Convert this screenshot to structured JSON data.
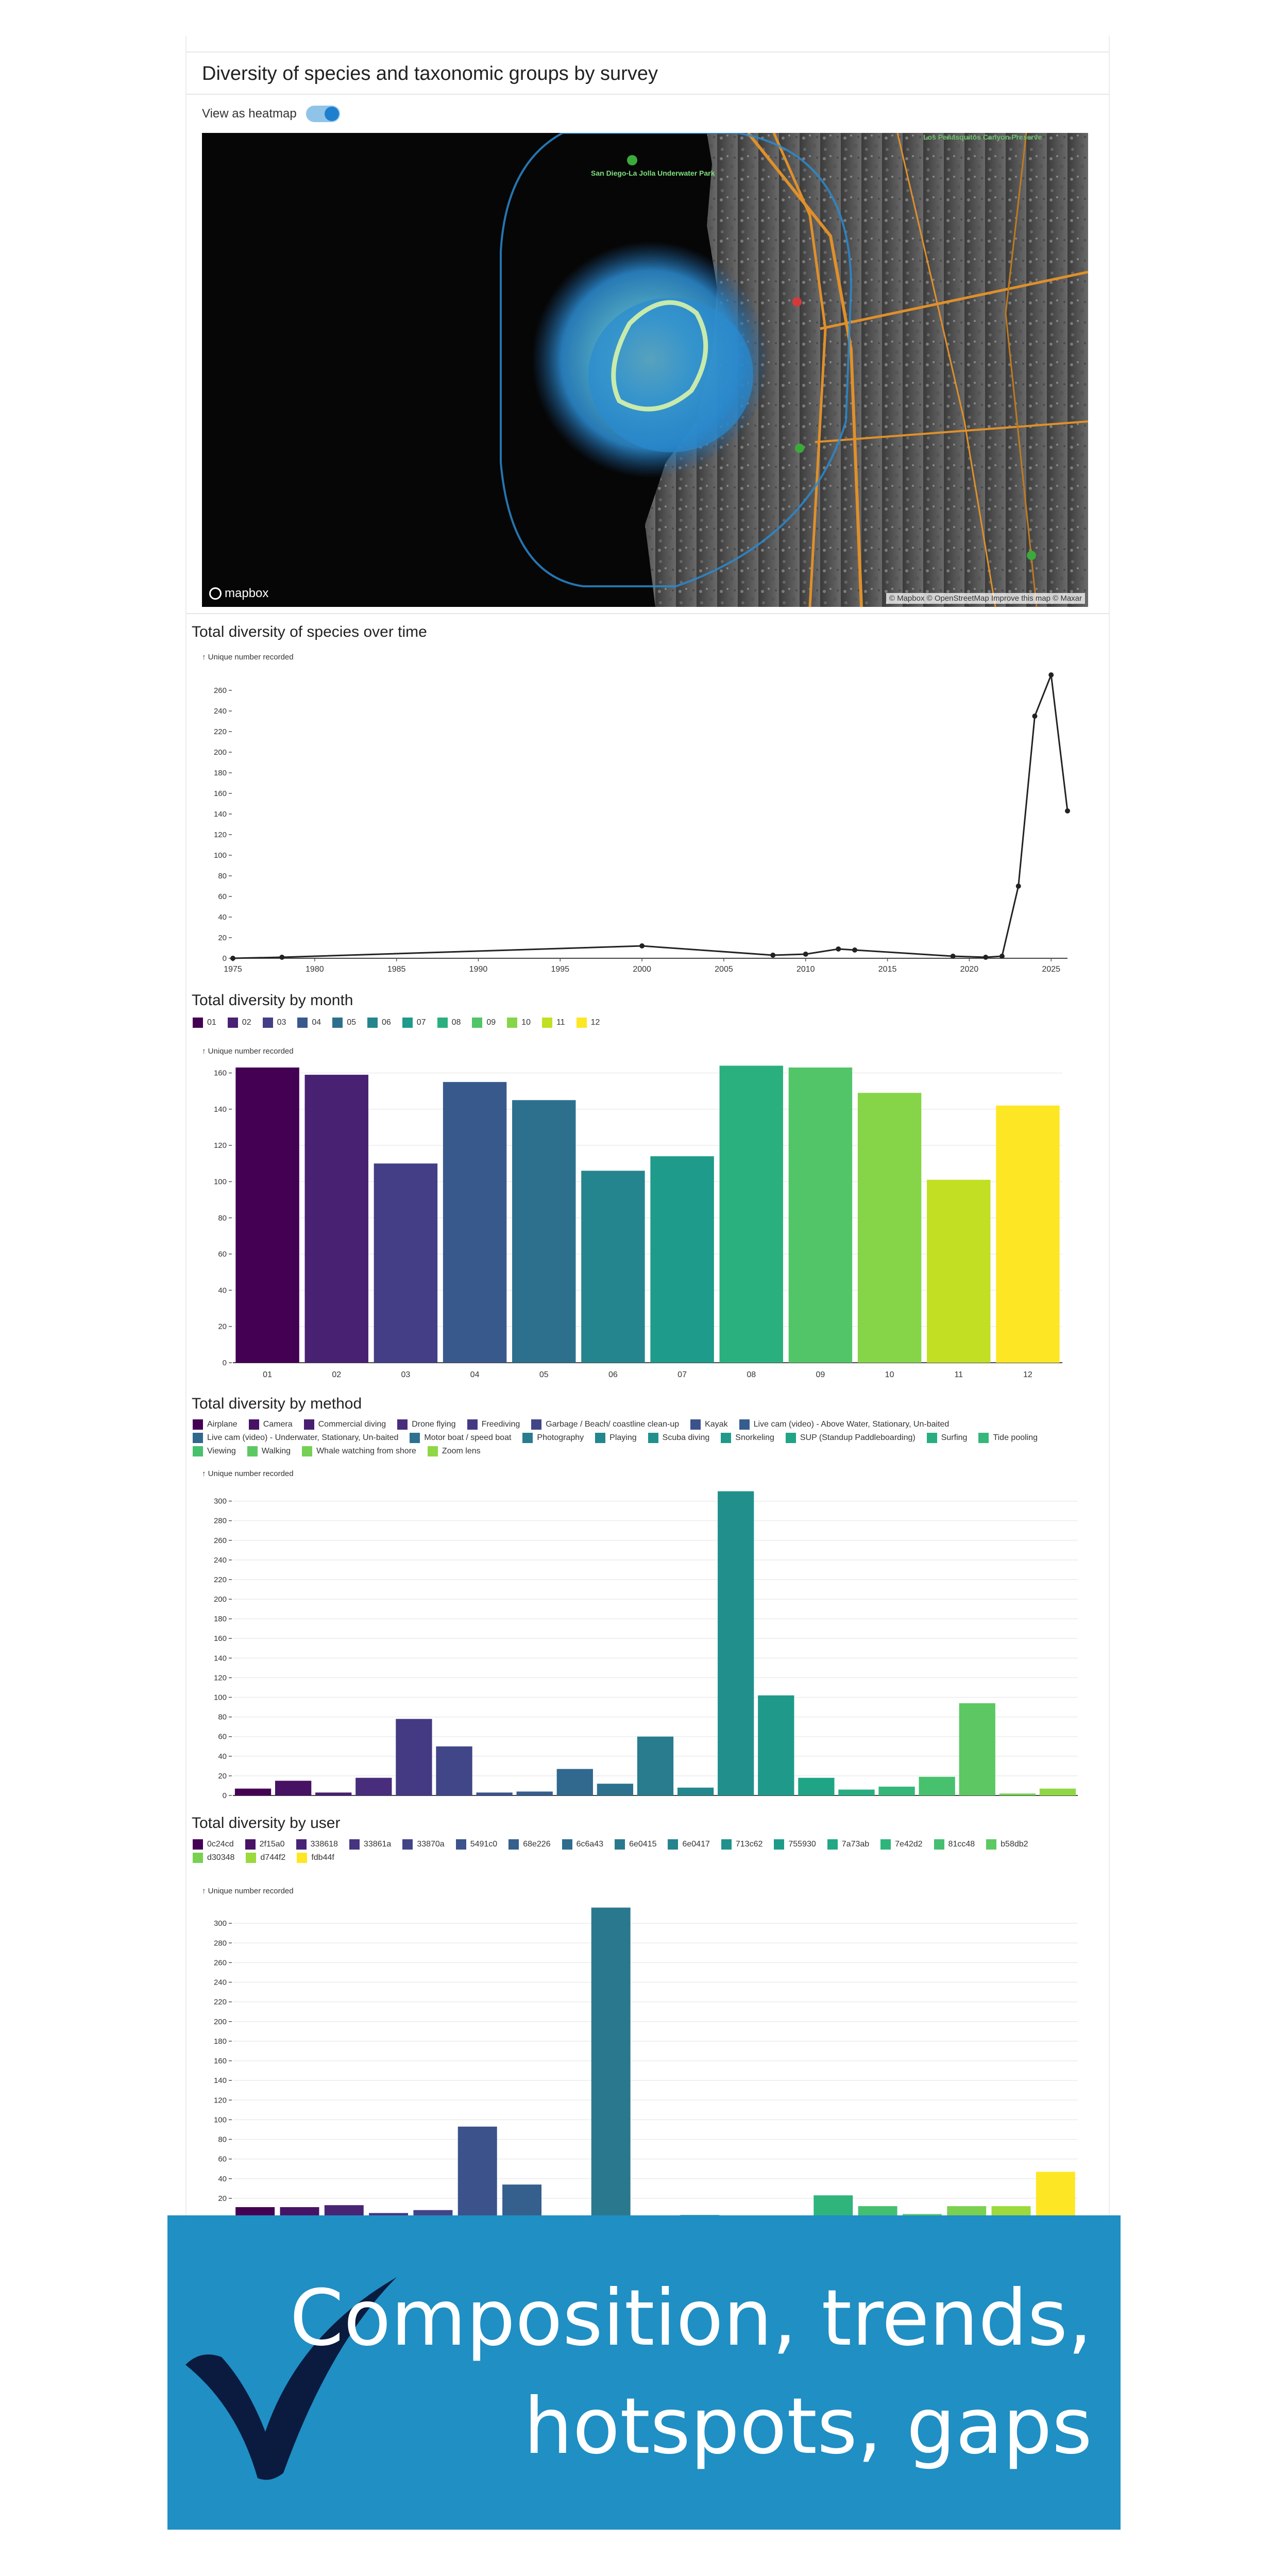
{
  "panel": {
    "title": "Diversity of species and taxonomic groups by survey",
    "toggle_label": "View as heatmap",
    "toggle_on": true
  },
  "map": {
    "logo": "mapbox",
    "attribution": "© Mapbox © OpenStreetMap Improve this map © Maxar",
    "place_labels": [
      "San Diego-La Jolla Underwater Park",
      "Los Peñasquitos Canyon Preserve"
    ]
  },
  "colors": {
    "viridis_dark": "#440154",
    "viridis_light": "#fde725",
    "banner_bg": "#1f8fc4",
    "check": "#0b1b3f"
  },
  "charts": {
    "time": {
      "title": "Total diversity of species over time",
      "ylabel": "↑ Unique number recorded"
    },
    "month": {
      "title": "Total diversity by month",
      "ylabel": "↑ Unique number recorded"
    },
    "method": {
      "title": "Total diversity by method",
      "ylabel": "↑ Unique number recorded"
    },
    "user": {
      "title": "Total diversity by user",
      "ylabel": "↑ Unique number recorded"
    }
  },
  "chart_data": [
    {
      "type": "line",
      "title": "Total diversity of species over time",
      "ylabel": "↑ Unique number recorded",
      "xlabel": "",
      "xlim": [
        1975,
        2026
      ],
      "ylim": [
        0,
        280
      ],
      "xticks": [
        1975,
        1980,
        1985,
        1990,
        1995,
        2000,
        2005,
        2010,
        2015,
        2020,
        2025
      ],
      "yticks": [
        0,
        20,
        40,
        60,
        80,
        100,
        120,
        140,
        160,
        180,
        200,
        220,
        240,
        260
      ],
      "x": [
        1975,
        1978,
        2000,
        2008,
        2010,
        2012,
        2013,
        2019,
        2021,
        2022,
        2023,
        2024,
        2025,
        2026
      ],
      "values": [
        0,
        1,
        12,
        3,
        4,
        9,
        8,
        2,
        1,
        2,
        70,
        235,
        275,
        143
      ]
    },
    {
      "type": "bar",
      "title": "Total diversity by month",
      "ylabel": "↑ Unique number recorded",
      "categories": [
        "01",
        "02",
        "03",
        "04",
        "05",
        "06",
        "07",
        "08",
        "09",
        "10",
        "11",
        "12"
      ],
      "values": [
        163,
        159,
        110,
        155,
        145,
        106,
        114,
        164,
        163,
        149,
        101,
        142
      ],
      "ylim": [
        0,
        165
      ],
      "yticks": [
        0,
        20,
        40,
        60,
        80,
        100,
        120,
        140,
        160
      ],
      "colors": [
        "#440154",
        "#482173",
        "#433e85",
        "#38598c",
        "#2d708e",
        "#25858e",
        "#1e9b8a",
        "#2ab07f",
        "#52c569",
        "#86d549",
        "#c2df23",
        "#fde725"
      ],
      "grid": true
    },
    {
      "type": "bar",
      "title": "Total diversity by method",
      "ylabel": "↑ Unique number recorded",
      "categories": [
        "Airplane",
        "Camera",
        "Commercial diving",
        "Drone flying",
        "Freediving",
        "Garbage / Beach/ coastline clean-up",
        "Kayak",
        "Live cam (video) - Above Water, Stationary, Un-baited",
        "Live cam (video) - Underwater, Stationary, Un-baited",
        "Motor boat / speed boat",
        "Photography",
        "Playing",
        "Scuba diving",
        "Snorkeling",
        "SUP (Standup Paddleboarding)",
        "Surfing",
        "Tide pooling",
        "Viewing",
        "Walking",
        "Whale watching from shore",
        "Zoom lens"
      ],
      "values": [
        7,
        15,
        3,
        18,
        78,
        50,
        3,
        4,
        27,
        12,
        60,
        8,
        310,
        102,
        18,
        6,
        9,
        19,
        94,
        2,
        7
      ],
      "ylim": [
        0,
        315
      ],
      "yticks": [
        0,
        20,
        40,
        60,
        80,
        100,
        120,
        140,
        160,
        180,
        200,
        220,
        240,
        260,
        280,
        300
      ],
      "colors": [
        "#440154",
        "#471164",
        "#481f70",
        "#472d7b",
        "#443a83",
        "#404688",
        "#3b528b",
        "#365d8d",
        "#31688e",
        "#2c728e",
        "#287c8e",
        "#24868e",
        "#21908d",
        "#1f9a8a",
        "#20a486",
        "#27ad81",
        "#35b779",
        "#47c16e",
        "#5dc863",
        "#75d054",
        "#8fd744"
      ],
      "grid": true
    },
    {
      "type": "bar",
      "title": "Total diversity by user",
      "ylabel": "↑ Unique number recorded",
      "categories": [
        "0c24cd",
        "2f15a0",
        "338618",
        "33861a",
        "33870a",
        "5491c0",
        "68e226",
        "6c6a43",
        "6e0415",
        "6e0417",
        "713c62",
        "755930",
        "7a73ab",
        "7e42d2",
        "81cc48",
        "b58db2",
        "d30348",
        "d744f2",
        "fdb44f"
      ],
      "values": [
        11,
        11,
        13,
        5,
        8,
        93,
        34,
        0,
        316,
        2,
        3,
        1,
        0,
        23,
        12,
        4,
        12,
        12,
        47
      ],
      "ylim": [
        0,
        320
      ],
      "yticks": [
        0,
        20,
        40,
        60,
        80,
        100,
        120,
        140,
        160,
        180,
        200,
        220,
        240,
        260,
        280,
        300
      ],
      "colors": [
        "#440154",
        "#471365",
        "#482475",
        "#463480",
        "#414487",
        "#3b528b",
        "#355f8d",
        "#2f6c8e",
        "#2a788e",
        "#25848e",
        "#21918c",
        "#1e9c89",
        "#22a884",
        "#2fb47c",
        "#44bf70",
        "#5ec962",
        "#7ad151",
        "#9bd93c",
        "#fde725"
      ],
      "grid": true
    }
  ],
  "banner": {
    "line1": "Composition, trends,",
    "line2": "hotspots, gaps"
  }
}
